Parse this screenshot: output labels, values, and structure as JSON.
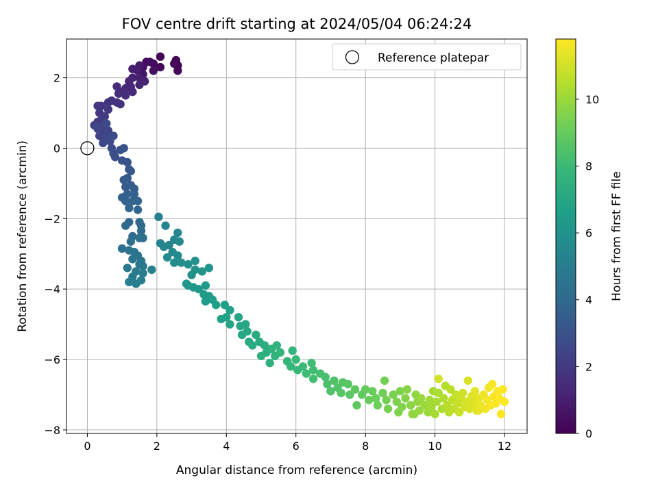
{
  "chart_data": {
    "type": "scatter",
    "title": "FOV centre drift starting at 2024/05/04 06:24:24",
    "xlabel": "Angular distance from reference (arcmin)",
    "ylabel": "Rotation from reference (arcmin)",
    "xlim": [
      -0.6,
      12.65
    ],
    "ylim": [
      -8.1,
      3.1
    ],
    "xticks": [
      0,
      2,
      4,
      6,
      8,
      10,
      12
    ],
    "xtick_labels": [
      "0",
      "2",
      "4",
      "6",
      "8",
      "10",
      "12"
    ],
    "yticks": [
      2,
      0,
      -2,
      -4,
      -6,
      -8
    ],
    "ytick_labels": [
      "2",
      "0",
      "−2",
      "−4",
      "−6",
      "−8"
    ],
    "grid": true,
    "legend": {
      "placement": "top-right",
      "entries": [
        "Reference platepar"
      ]
    },
    "reference_point": {
      "x": 0,
      "y": 0,
      "label": "Reference platepar"
    },
    "colorbar": {
      "label": "Hours from first FF file",
      "range": [
        0,
        11.8
      ],
      "ticks": [
        0,
        2,
        4,
        6,
        8,
        10
      ],
      "tick_labels": [
        "0",
        "2",
        "4",
        "6",
        "8",
        "10"
      ],
      "colormap": "viridis"
    },
    "points": [
      [
        2.6,
        2.35,
        0.05
      ],
      [
        2.55,
        2.5,
        0.1
      ],
      [
        2.1,
        2.6,
        0.15
      ],
      [
        2.6,
        2.2,
        0.2
      ],
      [
        2.5,
        2.4,
        0.25
      ],
      [
        2.1,
        2.3,
        0.3
      ],
      [
        1.9,
        2.4,
        0.35
      ],
      [
        1.8,
        2.45,
        0.4
      ],
      [
        1.7,
        2.45,
        0.45
      ],
      [
        1.9,
        2.2,
        0.5
      ],
      [
        1.6,
        2.3,
        0.6
      ],
      [
        1.6,
        2.1,
        0.7
      ],
      [
        1.5,
        2.35,
        0.8
      ],
      [
        1.45,
        2.2,
        0.9
      ],
      [
        1.3,
        2.25,
        1.0
      ],
      [
        1.5,
        2.0,
        1.05
      ],
      [
        1.3,
        2.0,
        1.1
      ],
      [
        1.65,
        1.9,
        1.15
      ],
      [
        1.2,
        1.9,
        1.2
      ],
      [
        1.5,
        1.8,
        1.25
      ],
      [
        1.25,
        1.75,
        1.3
      ],
      [
        1.1,
        1.7,
        1.35
      ],
      [
        1.0,
        1.6,
        1.4
      ],
      [
        1.3,
        1.6,
        1.45
      ],
      [
        0.85,
        1.75,
        1.5
      ],
      [
        0.9,
        1.55,
        1.55
      ],
      [
        1.1,
        1.5,
        1.6
      ],
      [
        0.7,
        1.35,
        1.65
      ],
      [
        0.85,
        1.3,
        1.7
      ],
      [
        0.95,
        1.25,
        1.75
      ],
      [
        0.6,
        1.3,
        1.8
      ],
      [
        0.3,
        1.2,
        1.85
      ],
      [
        0.4,
        1.2,
        1.9
      ],
      [
        0.6,
        1.1,
        1.95
      ],
      [
        0.35,
        1.0,
        2.0
      ],
      [
        0.5,
        0.9,
        2.05
      ],
      [
        0.4,
        0.8,
        2.1
      ],
      [
        0.3,
        0.75,
        2.15
      ],
      [
        0.2,
        0.65,
        2.2
      ],
      [
        0.5,
        0.6,
        2.25
      ],
      [
        0.3,
        0.55,
        2.3
      ],
      [
        0.45,
        0.45,
        2.35
      ],
      [
        0.35,
        0.35,
        2.4
      ],
      [
        0.6,
        0.5,
        2.45
      ],
      [
        0.3,
        0.6,
        2.5
      ],
      [
        0.55,
        0.3,
        2.55
      ],
      [
        0.45,
        0.15,
        2.6
      ],
      [
        0.65,
        0.2,
        2.65
      ],
      [
        0.75,
        0.35,
        2.7
      ],
      [
        0.55,
        0.7,
        2.75
      ],
      [
        0.7,
        0.0,
        2.8
      ],
      [
        0.75,
        -0.15,
        2.85
      ],
      [
        0.8,
        -0.25,
        2.9
      ],
      [
        0.95,
        -0.05,
        2.95
      ],
      [
        1.05,
        0.0,
        3.0
      ],
      [
        1.0,
        -0.35,
        3.05
      ],
      [
        1.15,
        -0.4,
        3.1
      ],
      [
        1.2,
        -0.6,
        3.15
      ],
      [
        1.25,
        -0.65,
        3.2
      ],
      [
        1.05,
        -0.9,
        3.3
      ],
      [
        1.15,
        -0.85,
        3.35
      ],
      [
        1.1,
        -1.1,
        3.4
      ],
      [
        1.25,
        -1.05,
        3.45
      ],
      [
        1.35,
        -1.15,
        3.5
      ],
      [
        1.0,
        -1.4,
        3.55
      ],
      [
        1.15,
        -1.3,
        3.6
      ],
      [
        1.35,
        -1.3,
        3.65
      ],
      [
        1.1,
        -1.5,
        3.7
      ],
      [
        1.3,
        -1.5,
        3.75
      ],
      [
        1.45,
        -1.5,
        3.8
      ],
      [
        1.2,
        -1.7,
        3.85
      ],
      [
        1.45,
        -1.75,
        3.9
      ],
      [
        1.2,
        -2.1,
        3.95
      ],
      [
        1.5,
        -2.1,
        4.0
      ],
      [
        1.55,
        -2.2,
        4.05
      ],
      [
        1.1,
        -2.2,
        4.1
      ],
      [
        1.3,
        -2.5,
        4.15
      ],
      [
        1.55,
        -2.35,
        4.2
      ],
      [
        1.25,
        -2.65,
        4.25
      ],
      [
        1.5,
        -2.55,
        4.3
      ],
      [
        1.6,
        -2.55,
        4.35
      ],
      [
        1.0,
        -2.85,
        4.4
      ],
      [
        1.2,
        -2.9,
        4.45
      ],
      [
        1.35,
        -2.95,
        4.5
      ],
      [
        1.45,
        -3.05,
        4.55
      ],
      [
        1.3,
        -3.15,
        4.6
      ],
      [
        1.55,
        -3.2,
        4.65
      ],
      [
        1.5,
        -3.3,
        4.7
      ],
      [
        1.6,
        -3.35,
        4.75
      ],
      [
        1.15,
        -3.4,
        4.8
      ],
      [
        1.4,
        -3.5,
        4.85
      ],
      [
        1.6,
        -3.55,
        4.9
      ],
      [
        1.3,
        -3.65,
        4.95
      ],
      [
        1.2,
        -3.8,
        5.0
      ],
      [
        1.4,
        -3.85,
        5.05
      ],
      [
        1.55,
        -3.75,
        5.1
      ],
      [
        1.85,
        -3.45,
        5.15
      ],
      [
        2.05,
        -1.95,
        5.2
      ],
      [
        2.25,
        -2.2,
        5.25
      ],
      [
        2.1,
        -2.7,
        5.3
      ],
      [
        2.2,
        -2.8,
        5.35
      ],
      [
        2.35,
        -2.75,
        5.4
      ],
      [
        2.5,
        -2.6,
        5.45
      ],
      [
        2.6,
        -2.4,
        5.5
      ],
      [
        2.65,
        -2.65,
        5.55
      ],
      [
        2.45,
        -2.95,
        5.6
      ],
      [
        2.6,
        -3.05,
        5.65
      ],
      [
        2.3,
        -3.1,
        5.7
      ],
      [
        2.5,
        -3.25,
        5.75
      ],
      [
        2.7,
        -3.25,
        5.8
      ],
      [
        2.9,
        -3.3,
        5.85
      ],
      [
        3.1,
        -3.2,
        5.9
      ],
      [
        3.1,
        -3.45,
        5.95
      ],
      [
        3.0,
        -3.6,
        6.0
      ],
      [
        3.3,
        -3.5,
        6.05
      ],
      [
        3.5,
        -3.4,
        6.1
      ],
      [
        2.9,
        -3.9,
        6.15
      ],
      [
        2.85,
        -3.85,
        6.2
      ],
      [
        3.05,
        -3.95,
        6.25
      ],
      [
        3.2,
        -4.0,
        6.3
      ],
      [
        3.4,
        -3.9,
        6.35
      ],
      [
        3.35,
        -4.15,
        6.4
      ],
      [
        3.5,
        -4.2,
        6.45
      ],
      [
        3.4,
        -4.35,
        6.5
      ],
      [
        3.6,
        -4.3,
        6.55
      ],
      [
        3.7,
        -4.45,
        6.6
      ],
      [
        3.95,
        -4.45,
        6.65
      ],
      [
        4.1,
        -4.6,
        6.7
      ],
      [
        3.85,
        -4.85,
        6.75
      ],
      [
        4.0,
        -4.8,
        6.8
      ],
      [
        4.1,
        -5.0,
        6.85
      ],
      [
        4.35,
        -4.8,
        6.9
      ],
      [
        4.4,
        -5.05,
        6.95
      ],
      [
        4.55,
        -5.0,
        7.0
      ],
      [
        4.45,
        -5.3,
        7.05
      ],
      [
        4.6,
        -5.2,
        7.1
      ],
      [
        4.65,
        -5.5,
        7.15
      ],
      [
        4.85,
        -5.3,
        7.2
      ],
      [
        4.75,
        -5.6,
        7.25
      ],
      [
        4.95,
        -5.5,
        7.3
      ],
      [
        5.1,
        -5.6,
        7.35
      ],
      [
        5.15,
        -5.8,
        7.4
      ],
      [
        5.0,
        -5.9,
        7.45
      ],
      [
        5.25,
        -6.1,
        7.5
      ],
      [
        5.3,
        -5.7,
        7.55
      ],
      [
        5.45,
        -5.6,
        7.6
      ],
      [
        5.4,
        -5.9,
        7.65
      ],
      [
        5.55,
        -5.8,
        7.7
      ],
      [
        5.75,
        -6.05,
        7.75
      ],
      [
        5.9,
        -5.75,
        7.8
      ],
      [
        5.85,
        -6.2,
        7.85
      ],
      [
        6.05,
        -6.3,
        7.9
      ],
      [
        6.0,
        -6.0,
        7.95
      ],
      [
        6.2,
        -6.2,
        8.0
      ],
      [
        6.3,
        -6.4,
        8.05
      ],
      [
        6.45,
        -6.1,
        8.1
      ],
      [
        6.5,
        -6.3,
        8.15
      ],
      [
        6.5,
        -6.55,
        8.2
      ],
      [
        6.7,
        -6.4,
        8.25
      ],
      [
        6.85,
        -6.5,
        8.3
      ],
      [
        6.9,
        -6.7,
        8.4
      ],
      [
        7.0,
        -6.9,
        8.45
      ],
      [
        7.1,
        -6.6,
        8.5
      ],
      [
        7.2,
        -6.8,
        8.55
      ],
      [
        7.35,
        -6.65,
        8.6
      ],
      [
        7.3,
        -6.95,
        8.65
      ],
      [
        7.5,
        -6.7,
        8.7
      ],
      [
        7.55,
        -7.0,
        8.75
      ],
      [
        7.7,
        -6.85,
        8.8
      ],
      [
        7.75,
        -7.3,
        8.85
      ],
      [
        7.9,
        -7.0,
        8.9
      ],
      [
        8.0,
        -6.85,
        8.95
      ],
      [
        8.1,
        -7.15,
        9.0
      ],
      [
        8.2,
        -6.9,
        9.05
      ],
      [
        8.3,
        -7.1,
        9.1
      ],
      [
        8.35,
        -7.3,
        9.15
      ],
      [
        8.5,
        -6.95,
        9.2
      ],
      [
        8.55,
        -6.6,
        9.25
      ],
      [
        8.6,
        -7.15,
        9.3
      ],
      [
        8.65,
        -7.4,
        9.35
      ],
      [
        8.8,
        -7.0,
        9.4
      ],
      [
        8.9,
        -7.2,
        9.45
      ],
      [
        9.0,
        -6.9,
        9.5
      ],
      [
        9.05,
        -7.35,
        9.55
      ],
      [
        9.15,
        -7.1,
        9.6
      ],
      [
        9.2,
        -6.85,
        9.65
      ],
      [
        9.3,
        -7.3,
        9.7
      ],
      [
        9.35,
        -7.55,
        9.75
      ],
      [
        9.45,
        -7.0,
        9.8
      ],
      [
        9.5,
        -7.2,
        9.85
      ],
      [
        9.55,
        -7.45,
        9.9
      ],
      [
        9.6,
        -7.1,
        9.95
      ],
      [
        9.7,
        -7.3,
        10.0
      ],
      [
        9.8,
        -7.5,
        10.05
      ],
      [
        9.85,
        -7.15,
        10.1
      ],
      [
        9.9,
        -7.35,
        10.15
      ],
      [
        10.0,
        -7.55,
        10.2
      ],
      [
        10.05,
        -7.2,
        10.25
      ],
      [
        10.1,
        -6.95,
        10.3
      ],
      [
        10.2,
        -7.4,
        10.35
      ],
      [
        10.25,
        -7.1,
        10.4
      ],
      [
        10.3,
        -6.75,
        10.45
      ],
      [
        10.35,
        -7.3,
        10.5
      ],
      [
        10.4,
        -7.5,
        10.55
      ],
      [
        10.45,
        -6.85,
        10.6
      ],
      [
        10.5,
        -7.15,
        10.65
      ],
      [
        10.55,
        -7.4,
        10.7
      ],
      [
        10.6,
        -7.0,
        10.75
      ],
      [
        10.65,
        -7.25,
        10.8
      ],
      [
        10.7,
        -7.5,
        10.85
      ],
      [
        10.75,
        -7.1,
        10.9
      ],
      [
        10.8,
        -6.95,
        10.95
      ],
      [
        10.85,
        -7.35,
        11.0
      ],
      [
        10.9,
        -7.2,
        11.05
      ],
      [
        10.95,
        -6.6,
        11.1
      ],
      [
        11.0,
        -7.4,
        11.15
      ],
      [
        11.05,
        -7.05,
        11.2
      ],
      [
        11.1,
        -7.25,
        11.25
      ],
      [
        11.15,
        -6.9,
        11.3
      ],
      [
        11.2,
        -7.45,
        11.35
      ],
      [
        11.25,
        -7.1,
        11.4
      ],
      [
        11.3,
        -7.3,
        11.45
      ],
      [
        11.4,
        -7.0,
        11.5
      ],
      [
        11.45,
        -7.4,
        11.55
      ],
      [
        11.5,
        -7.15,
        11.6
      ],
      [
        11.55,
        -6.8,
        11.62
      ],
      [
        11.6,
        -7.3,
        11.65
      ],
      [
        11.65,
        -6.7,
        11.68
      ],
      [
        11.7,
        -7.05,
        11.7
      ],
      [
        11.75,
        -7.25,
        11.72
      ],
      [
        11.8,
        -6.9,
        11.74
      ],
      [
        11.85,
        -7.1,
        11.76
      ],
      [
        11.9,
        -7.55,
        11.77
      ],
      [
        11.95,
        -6.85,
        11.78
      ],
      [
        12.0,
        -7.2,
        11.79
      ],
      [
        10.1,
        -6.55,
        11.0
      ],
      [
        9.95,
        -6.9,
        10.2
      ],
      [
        9.4,
        -7.55,
        9.8
      ],
      [
        8.95,
        -7.5,
        9.5
      ],
      [
        11.25,
        -7.45,
        11.4
      ]
    ]
  }
}
